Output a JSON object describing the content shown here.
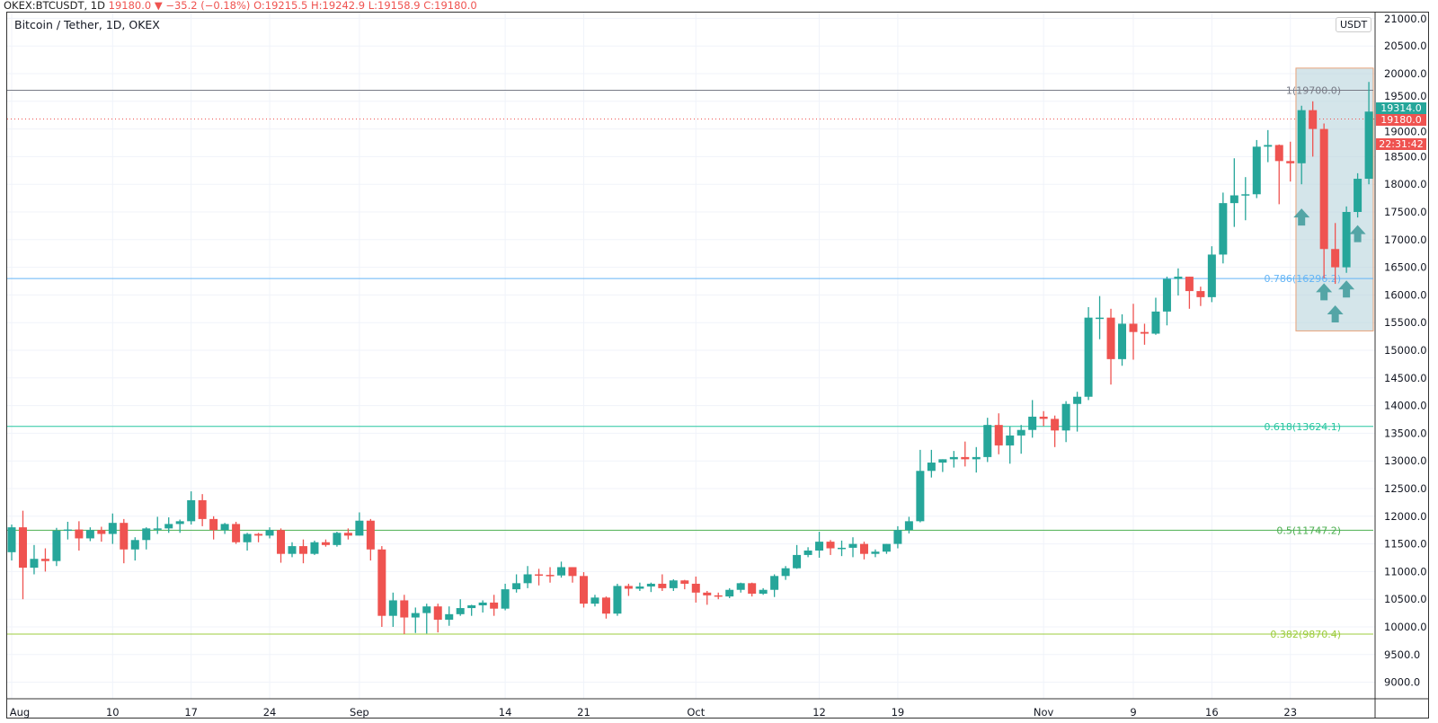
{
  "header": {
    "symbol": "OKEX:BTCUSDT, 1D",
    "last": "19180.0",
    "arrow": "▼",
    "change": "−35.2 (−0.18%)",
    "open": "O:19215.5",
    "high": "H:19242.9",
    "low": "L:19158.9",
    "close": "C:19180.0"
  },
  "title": "Bitcoin / Tether, 1D, OKEX",
  "currency_button": "USDT",
  "badges": {
    "last_price": "19314.0",
    "current_price": "19180.0",
    "countdown": "22:31:42"
  },
  "colors": {
    "up": "#26a69a",
    "down": "#ef5350",
    "box_fill": "#b7d3dc",
    "box_border": "#e8a27a"
  },
  "chart_data": {
    "type": "candlestick",
    "title": "Bitcoin / Tether, 1D, OKEX",
    "ylim": [
      8800,
      21100
    ],
    "y_ticks": [
      "9000.0",
      "9500.0",
      "10000.0",
      "10500.0",
      "11000.0",
      "11500.0",
      "12000.0",
      "12500.0",
      "13000.0",
      "13500.0",
      "14000.0",
      "14500.0",
      "15000.0",
      "15500.0",
      "16000.0",
      "16500.0",
      "17000.0",
      "17500.0",
      "18000.0",
      "18500.0",
      "19000.0",
      "19500.0",
      "20000.0",
      "20500.0",
      "21000.0"
    ],
    "x_ticks": [
      {
        "label": "Aug",
        "day": 0
      },
      {
        "label": "10",
        "day": 9
      },
      {
        "label": "17",
        "day": 16
      },
      {
        "label": "24",
        "day": 23
      },
      {
        "label": "Sep",
        "day": 31
      },
      {
        "label": "14",
        "day": 44
      },
      {
        "label": "21",
        "day": 51
      },
      {
        "label": "Oct",
        "day": 61
      },
      {
        "label": "12",
        "day": 72
      },
      {
        "label": "19",
        "day": 79
      },
      {
        "label": "Nov",
        "day": 92
      },
      {
        "label": "9",
        "day": 100
      },
      {
        "label": "16",
        "day": 107
      },
      {
        "label": "23",
        "day": 114
      }
    ],
    "fib_levels": [
      {
        "ratio": 1,
        "price": 19700.0,
        "label": "1(19700.0)",
        "color": "#787b86"
      },
      {
        "ratio": 0.786,
        "price": 16296.2,
        "label": "0.786(16296.2)",
        "color": "#64b5f6"
      },
      {
        "ratio": 0.618,
        "price": 13624.1,
        "label": "0.618(13624.1)",
        "color": "#26c6a0"
      },
      {
        "ratio": 0.5,
        "price": 11747.2,
        "label": "0.5(11747.2)",
        "color": "#4caf50"
      },
      {
        "ratio": 0.382,
        "price": 9870.4,
        "label": "0.382(9870.4)",
        "color": "#9ccc3c"
      }
    ],
    "box": {
      "start_day": 114.5,
      "price_top": 20100,
      "price_bottom": 15350
    },
    "arrows": [
      {
        "day": 115,
        "price": 17400
      },
      {
        "day": 117,
        "price": 16050
      },
      {
        "day": 118,
        "price": 15650
      },
      {
        "day": 119,
        "price": 16100
      },
      {
        "day": 120,
        "price": 17100
      }
    ],
    "current_price": 19180.0,
    "ohlc": [
      [
        11350,
        11850,
        11200,
        11800
      ],
      [
        11800,
        12100,
        10500,
        11070
      ],
      [
        11070,
        11480,
        10950,
        11230
      ],
      [
        11230,
        11420,
        11000,
        11190
      ],
      [
        11190,
        11790,
        11100,
        11740
      ],
      [
        11740,
        11900,
        11580,
        11760
      ],
      [
        11760,
        11910,
        11380,
        11600
      ],
      [
        11600,
        11800,
        11550,
        11750
      ],
      [
        11750,
        11810,
        11540,
        11680
      ],
      [
        11680,
        12050,
        11500,
        11880
      ],
      [
        11880,
        11950,
        11150,
        11400
      ],
      [
        11400,
        11620,
        11200,
        11570
      ],
      [
        11570,
        11800,
        11400,
        11780
      ],
      [
        11780,
        11990,
        11680,
        11780
      ],
      [
        11780,
        11980,
        11700,
        11860
      ],
      [
        11860,
        11940,
        11700,
        11910
      ],
      [
        11910,
        12450,
        11850,
        12290
      ],
      [
        12290,
        12400,
        11820,
        11950
      ],
      [
        11950,
        12000,
        11580,
        11750
      ],
      [
        11750,
        11880,
        11680,
        11860
      ],
      [
        11860,
        11900,
        11500,
        11530
      ],
      [
        11530,
        11700,
        11380,
        11680
      ],
      [
        11680,
        11700,
        11530,
        11650
      ],
      [
        11650,
        11800,
        11600,
        11750
      ],
      [
        11750,
        11780,
        11160,
        11320
      ],
      [
        11320,
        11530,
        11260,
        11460
      ],
      [
        11460,
        11580,
        11150,
        11320
      ],
      [
        11320,
        11560,
        11300,
        11530
      ],
      [
        11530,
        11580,
        11450,
        11480
      ],
      [
        11480,
        11720,
        11450,
        11700
      ],
      [
        11700,
        11780,
        11580,
        11650
      ],
      [
        11650,
        12070,
        11650,
        11920
      ],
      [
        11920,
        11950,
        11200,
        11400
      ],
      [
        11400,
        11460,
        10000,
        10200
      ],
      [
        10200,
        10620,
        10000,
        10480
      ],
      [
        10480,
        10580,
        9870,
        10170
      ],
      [
        10170,
        10350,
        9890,
        10250
      ],
      [
        10250,
        10420,
        9880,
        10370
      ],
      [
        10370,
        10420,
        9900,
        10130
      ],
      [
        10130,
        10370,
        10020,
        10230
      ],
      [
        10230,
        10500,
        10200,
        10340
      ],
      [
        10340,
        10400,
        10200,
        10390
      ],
      [
        10390,
        10480,
        10260,
        10440
      ],
      [
        10440,
        10580,
        10200,
        10330
      ],
      [
        10330,
        10780,
        10300,
        10680
      ],
      [
        10680,
        10950,
        10620,
        10790
      ],
      [
        10790,
        11100,
        10700,
        10950
      ],
      [
        10950,
        11050,
        10750,
        10940
      ],
      [
        10940,
        11080,
        10800,
        10930
      ],
      [
        10930,
        11180,
        10890,
        11080
      ],
      [
        11080,
        11080,
        10800,
        10920
      ],
      [
        10920,
        10990,
        10350,
        10420
      ],
      [
        10420,
        10580,
        10370,
        10530
      ],
      [
        10530,
        10550,
        10150,
        10240
      ],
      [
        10240,
        10780,
        10200,
        10740
      ],
      [
        10740,
        10780,
        10560,
        10690
      ],
      [
        10690,
        10800,
        10650,
        10730
      ],
      [
        10730,
        10800,
        10630,
        10780
      ],
      [
        10780,
        10950,
        10650,
        10700
      ],
      [
        10700,
        10860,
        10650,
        10840
      ],
      [
        10840,
        10850,
        10680,
        10780
      ],
      [
        10780,
        10910,
        10440,
        10620
      ],
      [
        10620,
        10650,
        10400,
        10570
      ],
      [
        10570,
        10620,
        10500,
        10550
      ],
      [
        10550,
        10700,
        10520,
        10670
      ],
      [
        10670,
        10800,
        10620,
        10790
      ],
      [
        10790,
        10800,
        10550,
        10600
      ],
      [
        10600,
        10700,
        10580,
        10670
      ],
      [
        10670,
        10950,
        10540,
        10920
      ],
      [
        10920,
        11100,
        10850,
        11060
      ],
      [
        11060,
        11480,
        11050,
        11300
      ],
      [
        11300,
        11440,
        11260,
        11380
      ],
      [
        11380,
        11720,
        11250,
        11540
      ],
      [
        11540,
        11570,
        11300,
        11420
      ],
      [
        11420,
        11560,
        11280,
        11430
      ],
      [
        11430,
        11620,
        11260,
        11500
      ],
      [
        11500,
        11540,
        11220,
        11320
      ],
      [
        11320,
        11400,
        11260,
        11360
      ],
      [
        11360,
        11500,
        11320,
        11500
      ],
      [
        11500,
        11820,
        11420,
        11750
      ],
      [
        11750,
        11990,
        11690,
        11910
      ],
      [
        11910,
        13200,
        11890,
        12820
      ],
      [
        12820,
        13200,
        12700,
        12970
      ],
      [
        12970,
        13030,
        12800,
        13030
      ],
      [
        13030,
        13180,
        12880,
        13070
      ],
      [
        13070,
        13350,
        12900,
        13030
      ],
      [
        13030,
        13250,
        12790,
        13070
      ],
      [
        13070,
        13780,
        12980,
        13650
      ],
      [
        13650,
        13860,
        13120,
        13280
      ],
      [
        13280,
        13620,
        12950,
        13460
      ],
      [
        13460,
        13650,
        13130,
        13560
      ],
      [
        13560,
        14100,
        13420,
        13800
      ],
      [
        13800,
        13900,
        13630,
        13760
      ],
      [
        13760,
        13820,
        13250,
        13550
      ],
      [
        13550,
        14080,
        13340,
        14030
      ],
      [
        14030,
        14250,
        13530,
        14160
      ],
      [
        14160,
        15780,
        14100,
        15590
      ],
      [
        15590,
        15980,
        15200,
        15590
      ],
      [
        15590,
        15750,
        14380,
        14840
      ],
      [
        14840,
        15650,
        14720,
        15480
      ],
      [
        15480,
        15840,
        14830,
        15330
      ],
      [
        15330,
        15480,
        15100,
        15300
      ],
      [
        15300,
        15950,
        15280,
        15700
      ],
      [
        15700,
        16330,
        15450,
        16290
      ],
      [
        16290,
        16480,
        15990,
        16330
      ],
      [
        16330,
        16330,
        15750,
        16070
      ],
      [
        16070,
        16150,
        15800,
        15960
      ],
      [
        15960,
        16880,
        15870,
        16730
      ],
      [
        16730,
        17850,
        16570,
        17660
      ],
      [
        17660,
        18470,
        17230,
        17800
      ],
      [
        17800,
        18130,
        17350,
        17820
      ],
      [
        17820,
        18800,
        17750,
        18680
      ],
      [
        18680,
        18980,
        18400,
        18710
      ],
      [
        18710,
        18720,
        17640,
        18420
      ],
      [
        18420,
        18770,
        18050,
        18380
      ],
      [
        18380,
        19420,
        18000,
        19340
      ],
      [
        19340,
        19500,
        18500,
        19000
      ],
      [
        19000,
        19100,
        16300,
        16830
      ],
      [
        16830,
        17300,
        16200,
        16500
      ],
      [
        16500,
        17600,
        16400,
        17500
      ],
      [
        17500,
        18200,
        17400,
        18100
      ],
      [
        18100,
        19850,
        18000,
        19314
      ]
    ]
  }
}
